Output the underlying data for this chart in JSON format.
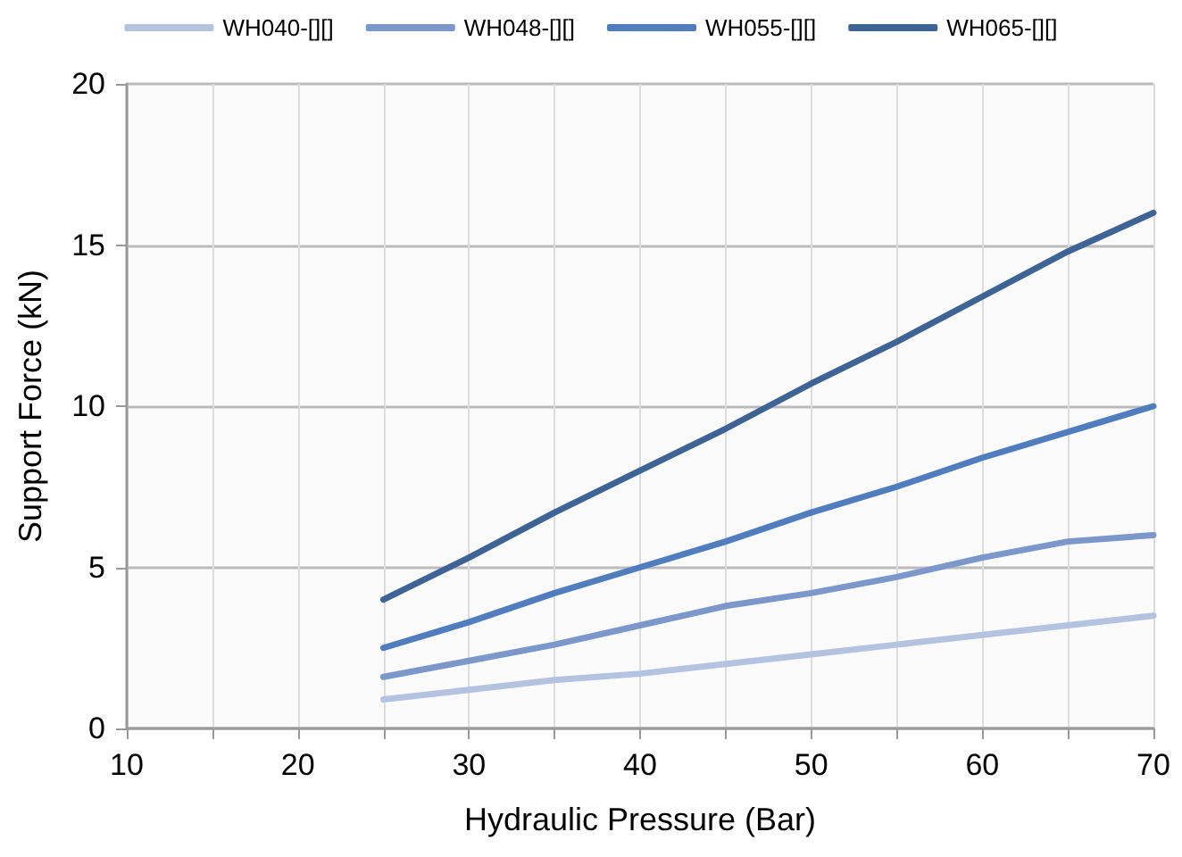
{
  "chart_data": {
    "type": "line",
    "xlabel": "Hydraulic Pressure (Bar)",
    "ylabel": "Support Force (kN)",
    "x": [
      25,
      30,
      35,
      40,
      45,
      50,
      55,
      60,
      65,
      70
    ],
    "series": [
      {
        "name": "WH040-[][]",
        "color": "#b4c3e0",
        "values": [
          0.9,
          1.2,
          1.5,
          1.7,
          2.0,
          2.3,
          2.6,
          2.9,
          3.2,
          3.5
        ]
      },
      {
        "name": "WH048-[][]",
        "color": "#7c98cb",
        "values": [
          1.6,
          2.1,
          2.6,
          3.2,
          3.8,
          4.2,
          4.7,
          5.3,
          5.8,
          6.0
        ]
      },
      {
        "name": "WH055-[][]",
        "color": "#4f7dbe",
        "values": [
          2.5,
          3.3,
          4.2,
          5.0,
          5.8,
          6.7,
          7.5,
          8.4,
          9.2,
          10.0
        ]
      },
      {
        "name": "WH065-[][]",
        "color": "#3e6496",
        "values": [
          4.0,
          5.3,
          6.7,
          8.0,
          9.3,
          10.7,
          12.0,
          13.4,
          14.8,
          16.0
        ]
      }
    ],
    "xlim": [
      10,
      70
    ],
    "xticks": [
      10,
      {
        "value": 15,
        "label": null
      },
      20,
      {
        "value": 25,
        "label": null
      },
      30,
      {
        "value": 35,
        "label": null
      },
      40,
      {
        "value": 45,
        "label": null
      },
      50,
      {
        "value": 55,
        "label": null
      },
      60,
      {
        "value": 65,
        "label": null
      },
      70
    ],
    "ylim": [
      0,
      20
    ],
    "yticks": [
      0,
      5,
      10,
      15,
      20
    ],
    "grid": true,
    "legend": "top",
    "marker": "none",
    "line_style": "solid"
  }
}
